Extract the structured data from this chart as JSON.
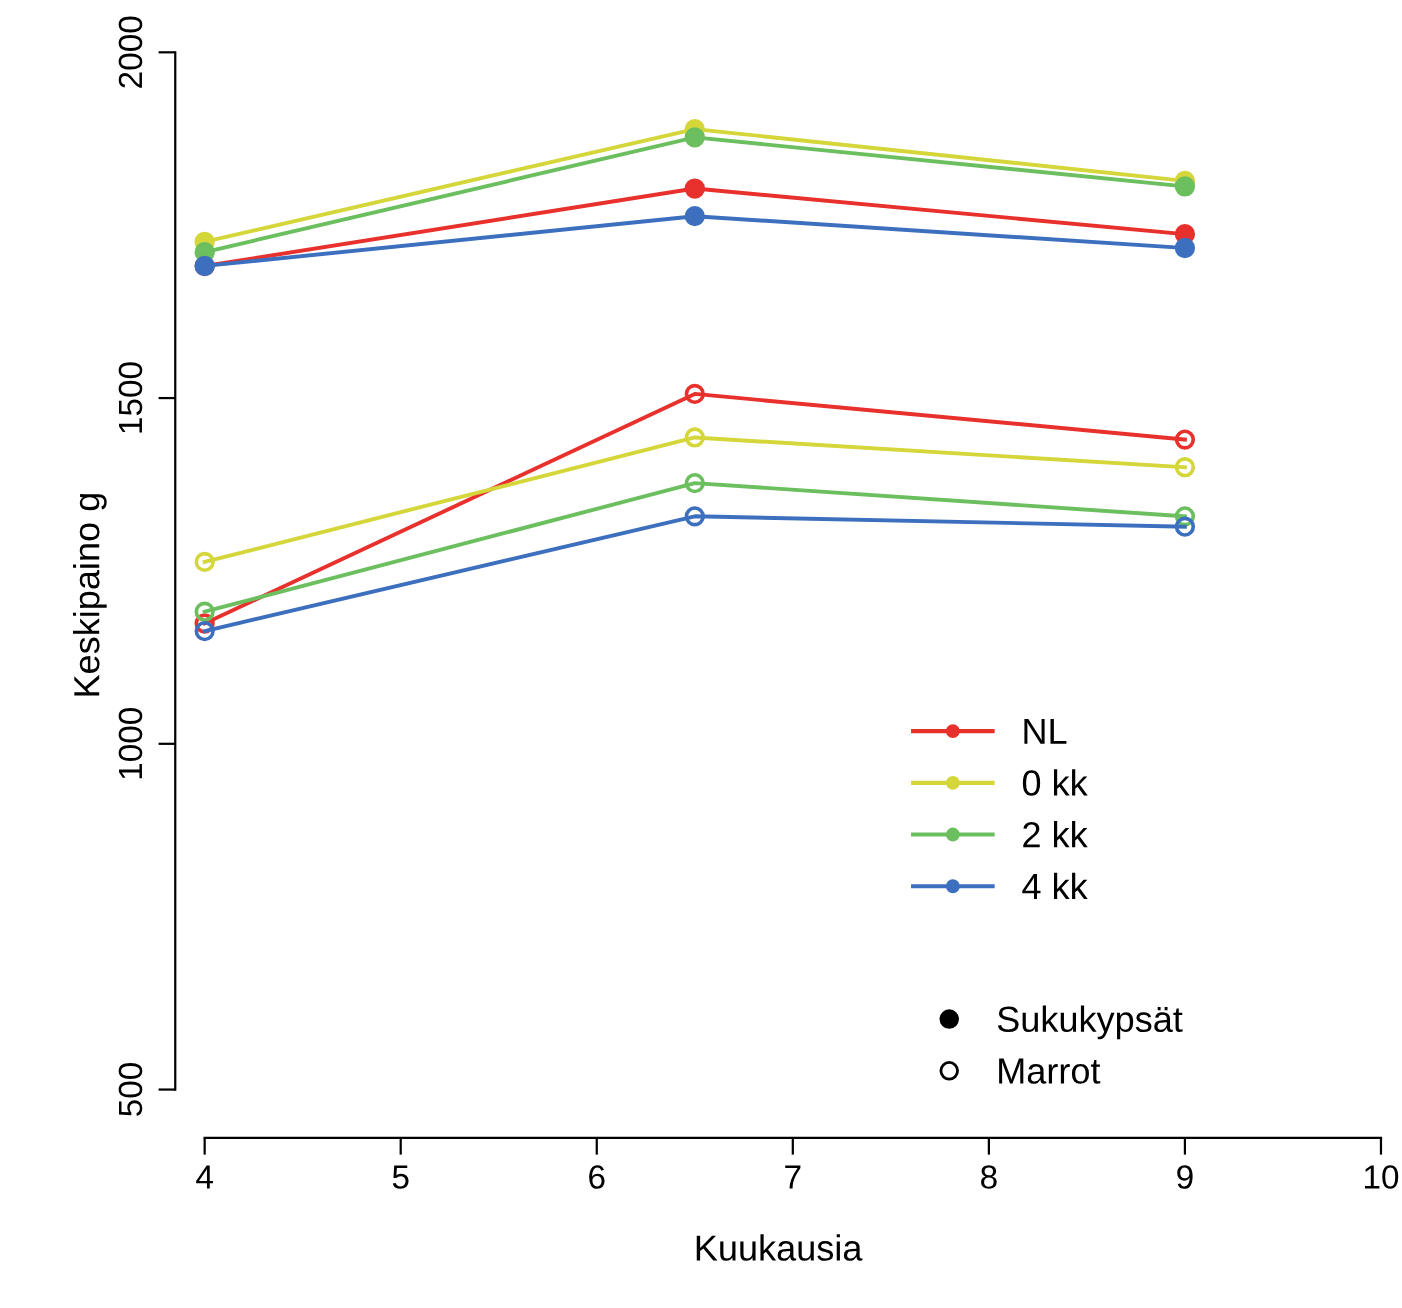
{
  "chart_data": {
    "type": "line",
    "xlabel": "Kuukausia",
    "ylabel": "Keskipaino g",
    "xlim": [
      3.85,
      10
    ],
    "ylim": [
      430,
      2000
    ],
    "xticks": [
      4,
      5,
      6,
      7,
      8,
      9,
      10
    ],
    "yticks": [
      500,
      1000,
      1500,
      2000
    ],
    "grid": false,
    "legend": "bottom right",
    "marker": "circle",
    "line_style": "solid",
    "annotations": [
      "Sukukypsät",
      "Marrot"
    ],
    "series": [
      {
        "name": "NL",
        "color": "#e8302c",
        "x": [
          4,
          6.5,
          9
        ],
        "values": [
          1691,
          1803,
          1737
        ]
      },
      {
        "name": "0 kk",
        "color": "#d4d63a",
        "x": [
          4,
          6.5,
          9
        ],
        "values": [
          1726,
          1889,
          1814
        ]
      },
      {
        "name": "2 kk",
        "color": "#6cbf5e",
        "x": [
          4,
          6.5,
          9
        ],
        "values": [
          1711,
          1877,
          1806
        ]
      },
      {
        "name": "4 kk",
        "color": "#3d6fbf",
        "x": [
          4,
          6.5,
          9
        ],
        "values": [
          1691,
          1763,
          1717
        ]
      },
      {
        "color": "#e8302c",
        "x": [
          4,
          6.5,
          9
        ],
        "values": [
          1174,
          1506,
          1440
        ]
      },
      {
        "color": "#d4d63a",
        "x": [
          4,
          6.5,
          9
        ],
        "values": [
          1263,
          1443,
          1400
        ]
      },
      {
        "color": "#6cbf5e",
        "x": [
          4,
          6.5,
          9
        ],
        "values": [
          1191,
          1377,
          1329
        ]
      },
      {
        "color": "#3d6fbf",
        "x": [
          4,
          6.5,
          9
        ],
        "values": [
          1163,
          1329,
          1314
        ]
      }
    ]
  }
}
